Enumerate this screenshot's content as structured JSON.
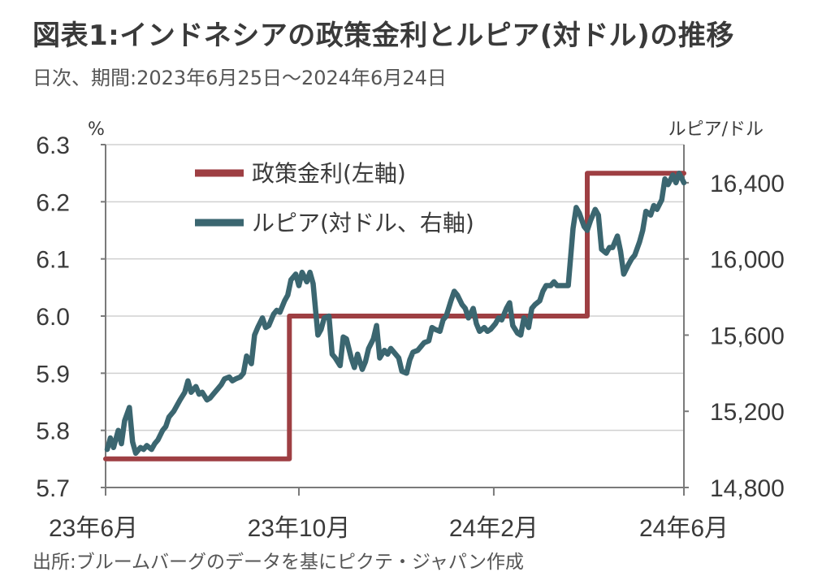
{
  "header": {
    "title": "図表1:インドネシアの政策金利とルピア(対ドル)の推移",
    "subtitle": "日次、期間:2023年6月25日〜2024年6月24日"
  },
  "footer": {
    "source": "出所:ブルームバーグのデータを基にピクテ・ジャパン作成"
  },
  "chart_data": {
    "type": "line",
    "left_unit": "%",
    "right_unit": "ルピア/ドル",
    "left_ylim": [
      5.7,
      6.3
    ],
    "left_ticks": [
      "6.3",
      "6.2",
      "6.1",
      "6.0",
      "5.9",
      "5.8",
      "5.7"
    ],
    "right_ylim": [
      14800,
      16600
    ],
    "right_ticks": [
      "16,400",
      "16,000",
      "15,600",
      "15,200",
      "14,800"
    ],
    "xlim": [
      "2023-06-25",
      "2024-06-24"
    ],
    "x_ticks": [
      {
        "date": "2023-06-25",
        "label": "23年6月"
      },
      {
        "date": "2023-10-25",
        "label": "23年10月"
      },
      {
        "date": "2024-02-25",
        "label": "24年2月"
      },
      {
        "date": "2024-06-24",
        "label": "24年6月"
      }
    ],
    "grid": "horizontal",
    "legend_position": "top-left",
    "series": [
      {
        "name": "政策金利(左軸)",
        "axis": "left",
        "color": "#9e3f43",
        "step": true,
        "points": [
          [
            "2023-06-25",
            5.75
          ],
          [
            "2023-10-19",
            5.75
          ],
          [
            "2023-10-19",
            6.0
          ],
          [
            "2024-04-24",
            6.0
          ],
          [
            "2024-04-24",
            6.25
          ],
          [
            "2024-06-24",
            6.25
          ]
        ]
      },
      {
        "name": "ルピア(対ドル、右軸)",
        "axis": "right",
        "color": "#3b6670",
        "step": false,
        "points": [
          [
            "2023-06-26",
            15000
          ],
          [
            "2023-06-28",
            15060
          ],
          [
            "2023-06-30",
            15010
          ],
          [
            "2023-07-03",
            15100
          ],
          [
            "2023-07-05",
            15030
          ],
          [
            "2023-07-07",
            15150
          ],
          [
            "2023-07-10",
            15220
          ],
          [
            "2023-07-12",
            15040
          ],
          [
            "2023-07-14",
            14980
          ],
          [
            "2023-07-17",
            15010
          ],
          [
            "2023-07-19",
            15000
          ],
          [
            "2023-07-21",
            15020
          ],
          [
            "2023-07-24",
            15000
          ],
          [
            "2023-07-26",
            15030
          ],
          [
            "2023-07-28",
            15050
          ],
          [
            "2023-07-31",
            15100
          ],
          [
            "2023-08-02",
            15120
          ],
          [
            "2023-08-04",
            15170
          ],
          [
            "2023-08-07",
            15200
          ],
          [
            "2023-08-09",
            15230
          ],
          [
            "2023-08-11",
            15260
          ],
          [
            "2023-08-14",
            15300
          ],
          [
            "2023-08-16",
            15360
          ],
          [
            "2023-08-18",
            15300
          ],
          [
            "2023-08-21",
            15330
          ],
          [
            "2023-08-23",
            15290
          ],
          [
            "2023-08-25",
            15300
          ],
          [
            "2023-08-28",
            15260
          ],
          [
            "2023-08-30",
            15270
          ],
          [
            "2023-09-01",
            15290
          ],
          [
            "2023-09-04",
            15320
          ],
          [
            "2023-09-06",
            15340
          ],
          [
            "2023-09-08",
            15370
          ],
          [
            "2023-09-11",
            15380
          ],
          [
            "2023-09-13",
            15360
          ],
          [
            "2023-09-15",
            15370
          ],
          [
            "2023-09-18",
            15380
          ],
          [
            "2023-09-20",
            15400
          ],
          [
            "2023-09-22",
            15490
          ],
          [
            "2023-09-25",
            15450
          ],
          [
            "2023-09-27",
            15600
          ],
          [
            "2023-09-29",
            15640
          ],
          [
            "2023-10-02",
            15690
          ],
          [
            "2023-10-04",
            15640
          ],
          [
            "2023-10-06",
            15650
          ],
          [
            "2023-10-09",
            15710
          ],
          [
            "2023-10-11",
            15730
          ],
          [
            "2023-10-13",
            15720
          ],
          [
            "2023-10-16",
            15780
          ],
          [
            "2023-10-18",
            15810
          ],
          [
            "2023-10-20",
            15890
          ],
          [
            "2023-10-23",
            15920
          ],
          [
            "2023-10-25",
            15860
          ],
          [
            "2023-10-27",
            15930
          ],
          [
            "2023-10-30",
            15880
          ],
          [
            "2023-11-01",
            15930
          ],
          [
            "2023-11-03",
            15870
          ],
          [
            "2023-11-06",
            15600
          ],
          [
            "2023-11-08",
            15630
          ],
          [
            "2023-11-10",
            15690
          ],
          [
            "2023-11-13",
            15700
          ],
          [
            "2023-11-15",
            15500
          ],
          [
            "2023-11-17",
            15480
          ],
          [
            "2023-11-20",
            15440
          ],
          [
            "2023-11-22",
            15590
          ],
          [
            "2023-11-24",
            15580
          ],
          [
            "2023-11-27",
            15480
          ],
          [
            "2023-11-29",
            15430
          ],
          [
            "2023-12-01",
            15500
          ],
          [
            "2023-12-04",
            15420
          ],
          [
            "2023-12-06",
            15460
          ],
          [
            "2023-12-08",
            15530
          ],
          [
            "2023-12-11",
            15580
          ],
          [
            "2023-12-13",
            15650
          ],
          [
            "2023-12-15",
            15480
          ],
          [
            "2023-12-18",
            15520
          ],
          [
            "2023-12-20",
            15500
          ],
          [
            "2023-12-22",
            15530
          ],
          [
            "2023-12-25",
            15500
          ],
          [
            "2023-12-27",
            15480
          ],
          [
            "2023-12-29",
            15410
          ],
          [
            "2024-01-01",
            15400
          ],
          [
            "2024-01-03",
            15470
          ],
          [
            "2024-01-05",
            15510
          ],
          [
            "2024-01-08",
            15520
          ],
          [
            "2024-01-10",
            15540
          ],
          [
            "2024-01-12",
            15560
          ],
          [
            "2024-01-15",
            15570
          ],
          [
            "2024-01-17",
            15640
          ],
          [
            "2024-01-19",
            15630
          ],
          [
            "2024-01-22",
            15620
          ],
          [
            "2024-01-24",
            15680
          ],
          [
            "2024-01-26",
            15700
          ],
          [
            "2024-01-29",
            15780
          ],
          [
            "2024-01-31",
            15830
          ],
          [
            "2024-02-02",
            15810
          ],
          [
            "2024-02-05",
            15760
          ],
          [
            "2024-02-07",
            15740
          ],
          [
            "2024-02-09",
            15690
          ],
          [
            "2024-02-12",
            15740
          ],
          [
            "2024-02-14",
            15660
          ],
          [
            "2024-02-16",
            15620
          ],
          [
            "2024-02-19",
            15640
          ],
          [
            "2024-02-21",
            15620
          ],
          [
            "2024-02-23",
            15630
          ],
          [
            "2024-02-26",
            15660
          ],
          [
            "2024-02-28",
            15690
          ],
          [
            "2024-03-01",
            15680
          ],
          [
            "2024-03-04",
            15740
          ],
          [
            "2024-03-06",
            15770
          ],
          [
            "2024-03-08",
            15650
          ],
          [
            "2024-03-11",
            15610
          ],
          [
            "2024-03-13",
            15600
          ],
          [
            "2024-03-15",
            15690
          ],
          [
            "2024-03-18",
            15640
          ],
          [
            "2024-03-20",
            15740
          ],
          [
            "2024-03-22",
            15760
          ],
          [
            "2024-03-25",
            15780
          ],
          [
            "2024-03-27",
            15830
          ],
          [
            "2024-03-29",
            15860
          ],
          [
            "2024-04-01",
            15860
          ],
          [
            "2024-04-03",
            15880
          ],
          [
            "2024-04-05",
            15860
          ],
          [
            "2024-04-08",
            15860
          ],
          [
            "2024-04-10",
            15860
          ],
          [
            "2024-04-12",
            15860
          ],
          [
            "2024-04-15",
            16160
          ],
          [
            "2024-04-17",
            16270
          ],
          [
            "2024-04-19",
            16240
          ],
          [
            "2024-04-22",
            16170
          ],
          [
            "2024-04-24",
            16150
          ],
          [
            "2024-04-26",
            16200
          ],
          [
            "2024-04-29",
            16260
          ],
          [
            "2024-05-01",
            16230
          ],
          [
            "2024-05-03",
            16050
          ],
          [
            "2024-05-06",
            16030
          ],
          [
            "2024-05-08",
            16060
          ],
          [
            "2024-05-10",
            16060
          ],
          [
            "2024-05-13",
            16120
          ],
          [
            "2024-05-15",
            16040
          ],
          [
            "2024-05-17",
            15920
          ],
          [
            "2024-05-20",
            15970
          ],
          [
            "2024-05-22",
            16000
          ],
          [
            "2024-05-24",
            16020
          ],
          [
            "2024-05-27",
            16090
          ],
          [
            "2024-05-29",
            16150
          ],
          [
            "2024-05-31",
            16250
          ],
          [
            "2024-06-03",
            16230
          ],
          [
            "2024-06-05",
            16280
          ],
          [
            "2024-06-07",
            16260
          ],
          [
            "2024-06-10",
            16310
          ],
          [
            "2024-06-12",
            16420
          ],
          [
            "2024-06-14",
            16390
          ],
          [
            "2024-06-17",
            16440
          ],
          [
            "2024-06-19",
            16400
          ],
          [
            "2024-06-21",
            16450
          ],
          [
            "2024-06-24",
            16400
          ]
        ]
      }
    ]
  }
}
